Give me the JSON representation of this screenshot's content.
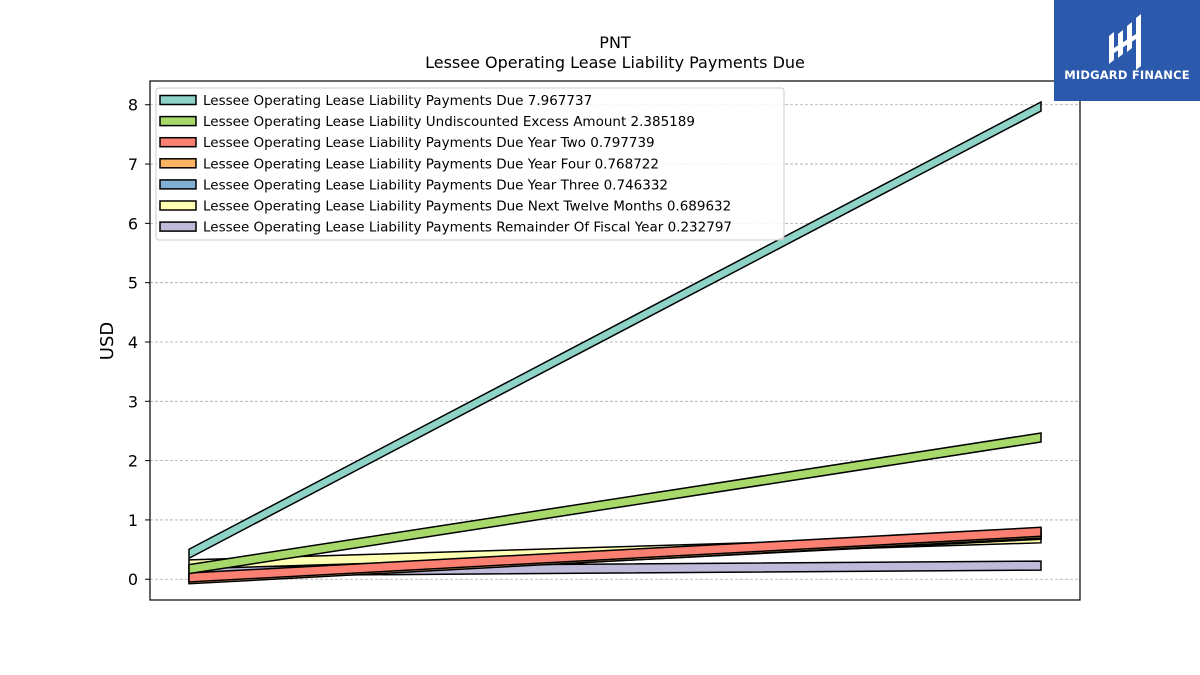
{
  "chart_data": {
    "type": "line",
    "title": "PNT",
    "subtitle": "Lessee Operating Lease Liability Payments Due",
    "xlabel": "",
    "ylabel": "USD",
    "ylim": [
      -0.35,
      8.4
    ],
    "yticks": [
      0,
      1,
      2,
      3,
      4,
      5,
      6,
      7,
      8
    ],
    "grid": "horizontal dashed",
    "legend_position": "top-left",
    "x": [
      0,
      1
    ],
    "series": [
      {
        "name": "Lessee Operating Lease Liability Payments Due",
        "value_label": "7.967737",
        "color": "#8dd3c7",
        "values": [
          0.43,
          7.97
        ]
      },
      {
        "name": "Lessee Operating Lease Liability Undiscounted Excess Amount",
        "value_label": "2.385189",
        "color": "#a6d96a",
        "values": [
          0.17,
          2.39
        ]
      },
      {
        "name": "Lessee Operating Lease Liability Payments Due Year Two",
        "value_label": "0.797739",
        "color": "#fb8072",
        "values": [
          0.03,
          0.8
        ]
      },
      {
        "name": "Lessee Operating Lease Liability Payments Due Year Four",
        "value_label": "0.768722",
        "color": "#fdb462",
        "values": [
          0.0,
          0.77
        ]
      },
      {
        "name": "Lessee Operating Lease Liability Payments Due Year Three",
        "value_label": "0.746332",
        "color": "#80b1d3",
        "values": [
          0.02,
          0.75
        ]
      },
      {
        "name": "Lessee Operating Lease Liability Payments Due Next Twelve Months",
        "value_label": "0.689632",
        "color": "#ffffb3",
        "values": [
          0.25,
          0.69
        ]
      },
      {
        "name": "Lessee Operating Lease Liability Payments Remainder Of Fiscal Year",
        "value_label": "0.232797",
        "color": "#bebada",
        "values": [
          0.13,
          0.23
        ]
      }
    ]
  },
  "logo": {
    "text": "MIDGARD FINANCE",
    "background": "#2b5aad",
    "icon": "midgard-logo-icon"
  }
}
